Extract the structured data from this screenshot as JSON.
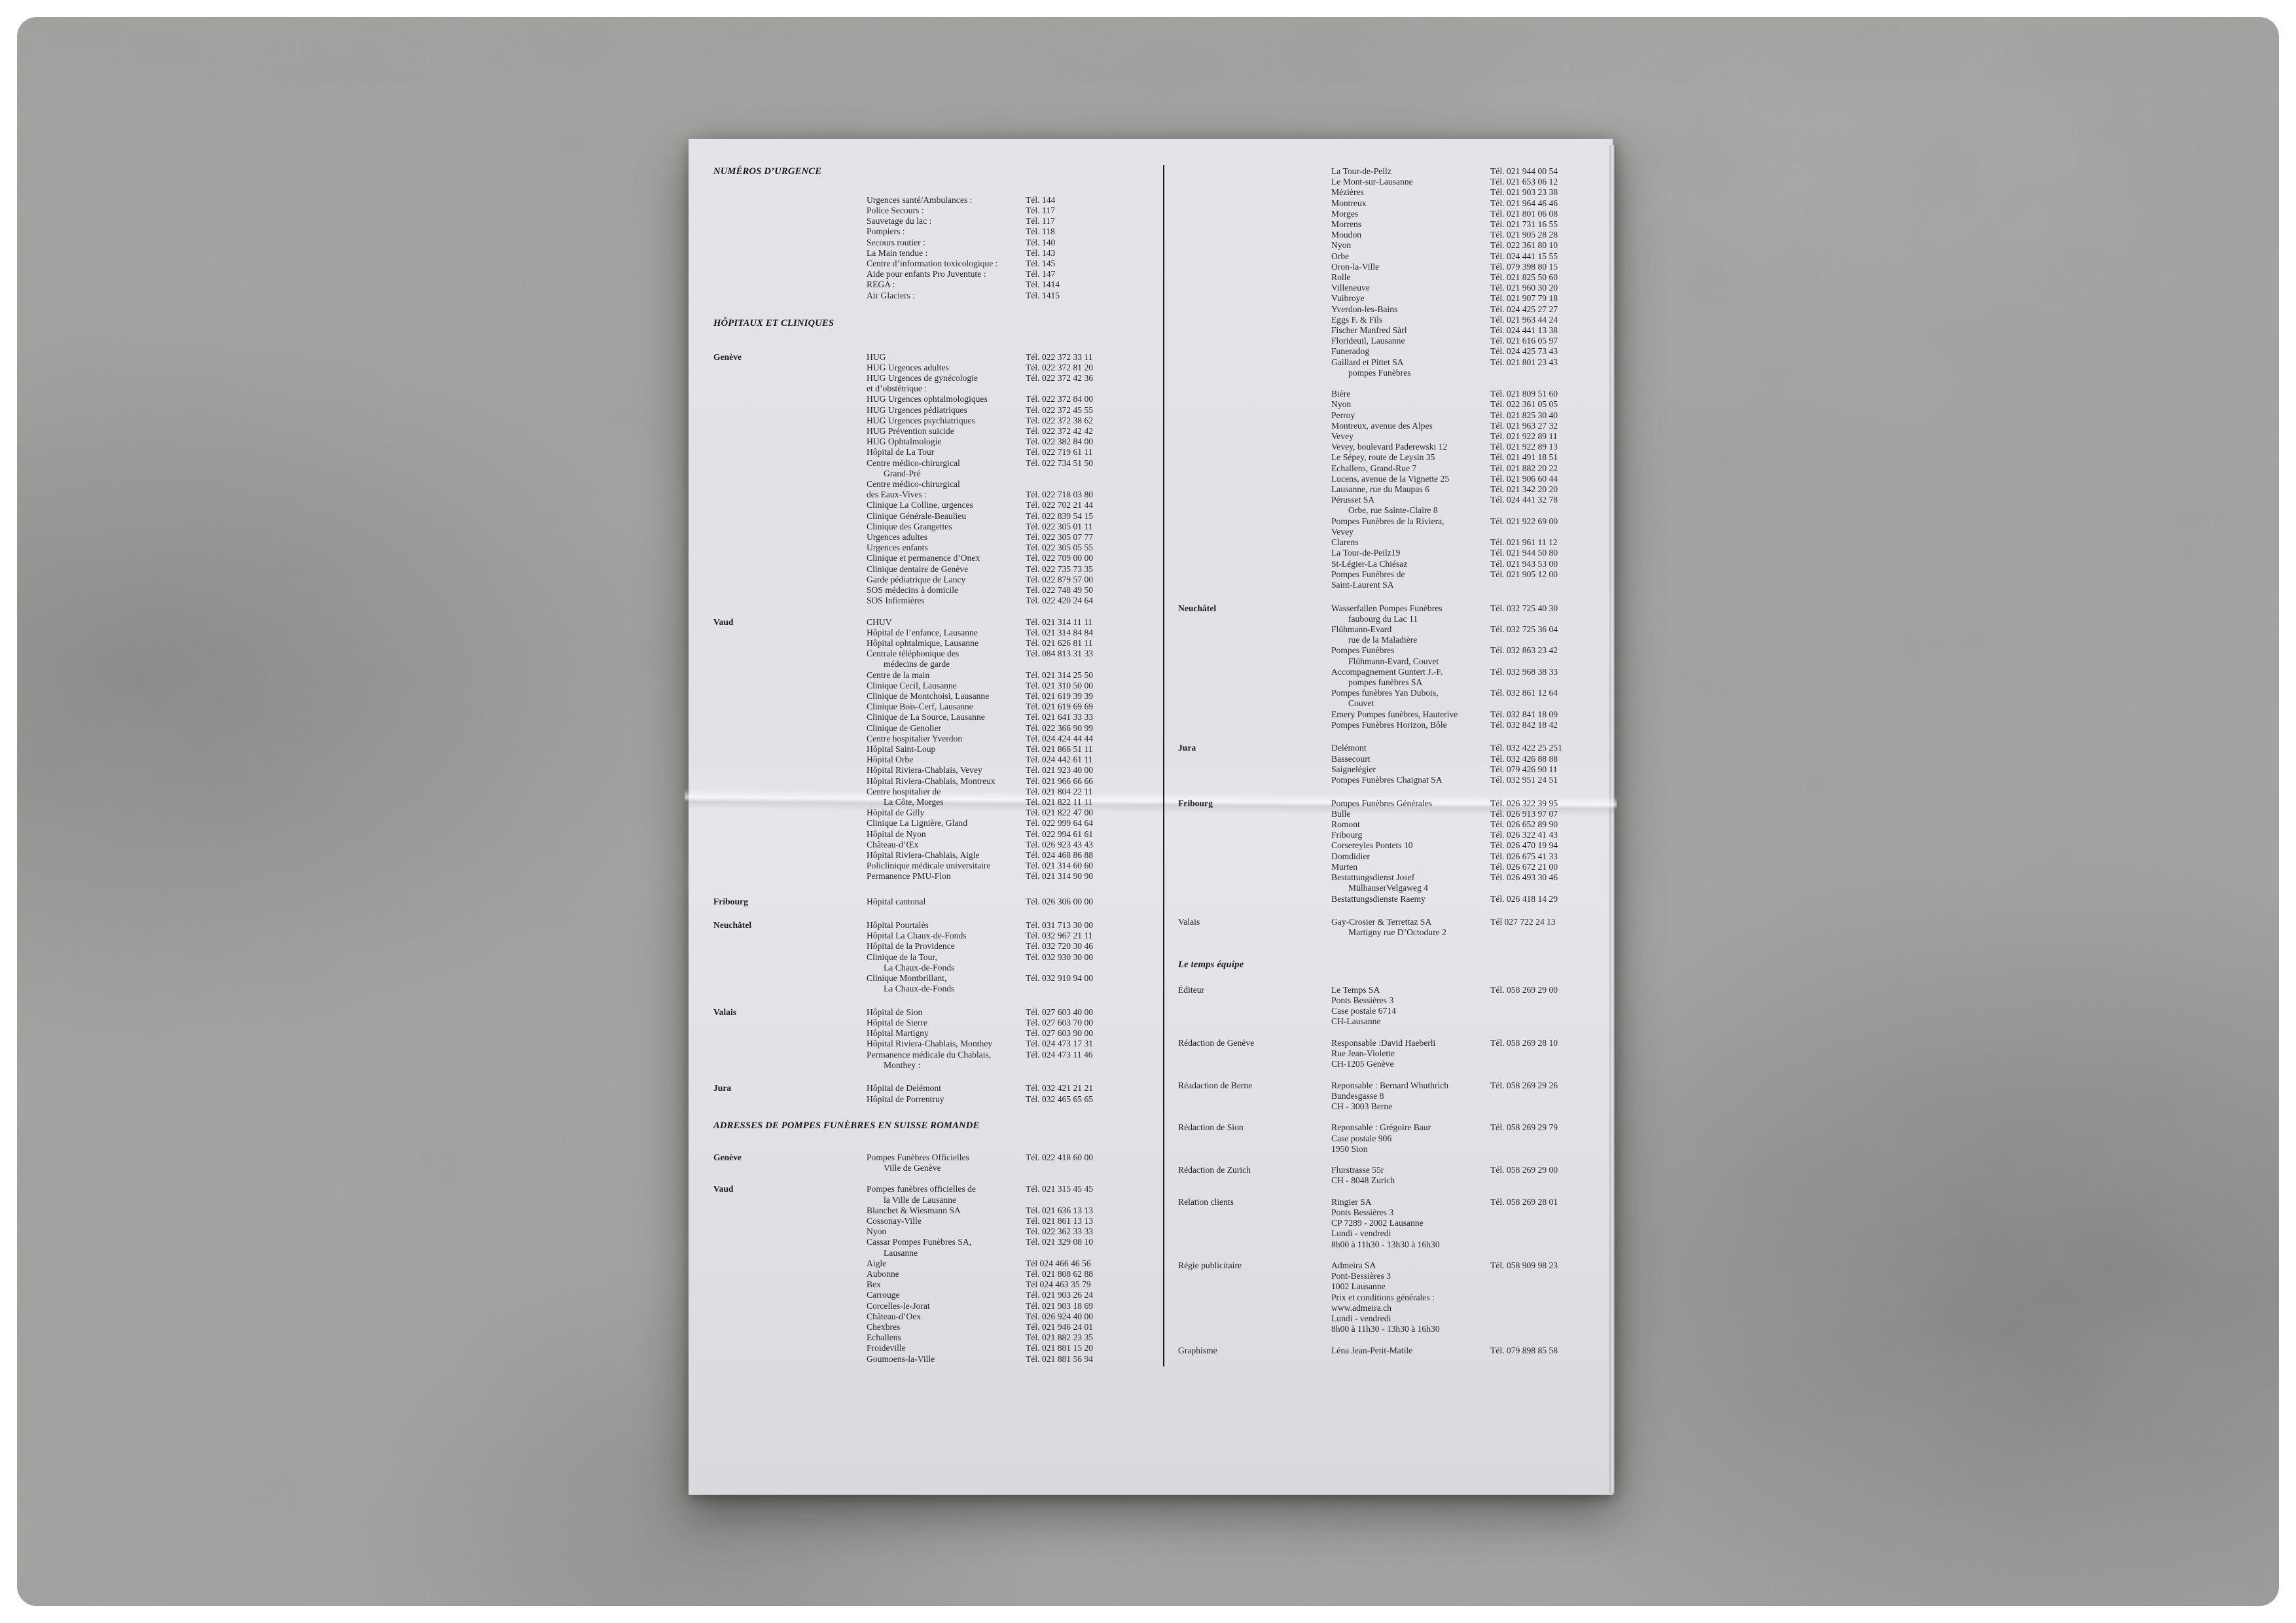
{
  "colors": {
    "background": "#a3a3a1",
    "paper": "#e2e2e6",
    "ink": "#26262c",
    "divider": "#1b1b1b"
  },
  "doc": {
    "left": [
      {
        "h": "NUMÉROS D’URGENCE"
      },
      {
        "g": 1.7
      },
      {
        "n": "Urgences santé/Ambulances :",
        "t": "Tél.  144"
      },
      {
        "n": "Police Secours :",
        "t": "Tél.   117"
      },
      {
        "n": "Sauvetage du lac :",
        "t": "Tél.   117"
      },
      {
        "n": "Pompiers :",
        "t": "Tél.   118"
      },
      {
        "n": "Secours routier :",
        "t": "Tél.  140"
      },
      {
        "n": "La Main tendue :",
        "t": "Tél.  143"
      },
      {
        "n": "Centre d’information toxicologique :",
        "t": "Tél.  145"
      },
      {
        "n": "Aide pour enfants Pro Juventute :",
        "t": "Tél.   147"
      },
      {
        "n": "REGA :",
        "t": "Tél. 1414"
      },
      {
        "n": "Air Glaciers :",
        "t": "Tél. 1415"
      },
      {
        "g": 1.6
      },
      {
        "h": "HÔPITAUX ET CLINIQUES"
      },
      {
        "g": 2.2
      },
      {
        "l": "Genève",
        "n": "HUG",
        "t": "Tél. 022 372  33  11"
      },
      {
        "n": "HUG Urgences adultes",
        "t": "Tél. 022 372   81 20"
      },
      {
        "n": "HUG Urgences de gynécologie",
        "t": "Tél. 022 372  42 36"
      },
      {
        "n": "et d’obstétrique :",
        "t": ""
      },
      {
        "n": "HUG Urgences ophtalmologiques",
        "t": "Tél. 022 372  84 00"
      },
      {
        "n": "HUG Urgences pédiatriques",
        "t": "Tél. 022 372  45 55"
      },
      {
        "n": "HUG Urgences psychiatriques",
        "t": "Tél. 022 372  38 62"
      },
      {
        "n": "HUG Prévention suicide",
        "t": "Tél. 022 372  42 42"
      },
      {
        "n": "HUG Ophtalmologie",
        "t": "Tél. 022 382  84 00"
      },
      {
        "n": "Hôpital de La Tour",
        "t": "Tél. 022 719   61  11"
      },
      {
        "n": "Centre médico-chirurgical",
        "t": "Tél. 022 734   51 50"
      },
      {
        "n": "Grand-Pré",
        "i": 1,
        "t": ""
      },
      {
        "n": "Centre médico-chirurgical",
        "t": ""
      },
      {
        "n": "des Eaux-Vives :",
        "t": "Tél. 022 718   03 80"
      },
      {
        "n": "Clinique La Colline, urgences",
        "t": "Tél. 022 702   21 44"
      },
      {
        "n": "Clinique Générale-Beaulieu",
        "t": "Tél. 022 839  54 15"
      },
      {
        "n": "Clinique des Grangettes",
        "t": "Tél. 022 305   01  11"
      },
      {
        "n": "Urgences adultes",
        "t": "Tél. 022 305  07 77"
      },
      {
        "n": "Urgences enfants",
        "t": "Tél. 022 305  05 55"
      },
      {
        "n": "Clinique et permanence d’Onex",
        "t": "Tél. 022 709  00 00"
      },
      {
        "n": "Clinique dentaire de Genève",
        "t": "Tél. 022 735   73 35"
      },
      {
        "n": "Garde pédiatrique de Lancy",
        "t": "Tél. 022 879   57 00"
      },
      {
        "n": "SOS médecins à domicile",
        "t": "Tél. 022 748   49 50"
      },
      {
        "n": "SOS Infirmières",
        "t": "Tél. 022 420  24 64"
      },
      {
        "g": 1
      },
      {
        "l": "Vaud",
        "n": "CHUV",
        "t": "Tél. 021 314     11  11"
      },
      {
        "n": "Hôpital de l’enfance, Lausanne",
        "t": "Tél. 021 314   84 84"
      },
      {
        "n": "Hôpital ophtalmique, Lausanne",
        "t": "Tél. 021 626   81  11"
      },
      {
        "n": "Centrale téléphonique des",
        "t": "Tél. 084 813   31 33"
      },
      {
        "n": "médecins de garde",
        "i": 1,
        "t": ""
      },
      {
        "n": "Centre de la main",
        "t": "Tél. 021 314   25 50"
      },
      {
        "n": "Clinique Cecil, Lausanne",
        "t": "Tél. 021 310   50 00"
      },
      {
        "n": "Clinique de Montchoisi, Lausanne",
        "t": "Tél. 021 619   39 39"
      },
      {
        "n": "Clinique Bois-Cerf, Lausanne",
        "t": "Tél. 021 619   69 69"
      },
      {
        "n": "Clinique de La Source, Lausanne",
        "t": "Tél. 021 641   33 33"
      },
      {
        "n": "Clinique de Genolier",
        "t": "Tél. 022 366 90 99"
      },
      {
        "n": "Centre hospitalier Yverdon",
        "t": "Tél. 024 424 44 44"
      },
      {
        "n": "Hôpital Saint-Loup",
        "t": "Tél. 021 866   51  11"
      },
      {
        "n": "Hôpital Orbe",
        "t": "Tél. 024 442   61  11"
      },
      {
        "n": "Hôpital Riviera-Chablais, Vevey",
        "t": "Tél. 021 923   40 00"
      },
      {
        "n": "Hôpital Riviera-Chablais, Montreux",
        "t": "Tél. 021 966  66 66"
      },
      {
        "n": "Centre hospitalier de",
        "t": "Tél. 021 804  22  11"
      },
      {
        "n": "La Côte, Morges",
        "i": 1,
        "t": "Tél. 021 822    11  11"
      },
      {
        "n": "Hôpital de Gilly",
        "t": "Tél. 021 822   47 00"
      },
      {
        "n": "Clinique La Lignière, Gland",
        "t": "Tél. 022 999 64 64"
      },
      {
        "n": "Hôpital de Nyon",
        "t": "Tél. 022 994   61 61"
      },
      {
        "n": "Château-d’Œx",
        "t": "Tél. 026 923 43 43"
      },
      {
        "n": "Hôpital Riviera-Chablais, Aigle",
        "t": "Tél. 024 468 86 88"
      },
      {
        "n": "Policlinique médicale universitaire",
        "t": "Tél. 021 314   60 60"
      },
      {
        "n": "Permanence PMU-Flon",
        "t": "Tél. 021 314   90 90"
      },
      {
        "g": 1.4
      },
      {
        "l": "Fribourg",
        "n": "Hôpital cantonal",
        "t": "Tél. 026 306 00 00"
      },
      {
        "g": 1.2
      },
      {
        "l": "Neuchâtel",
        "n": "Hôpital Pourtalès",
        "t": "Tél. 031 713   30 00"
      },
      {
        "n": "Hôpital La Chaux-de-Fonds",
        "t": "Tél. 032 967   21  11"
      },
      {
        "n": "Hôpital de la Providence",
        "t": "Tél. 032 720 30 46"
      },
      {
        "n": "Clinique de la Tour,",
        "t": "Tél. 032 930 30 00"
      },
      {
        "n": "La Chaux-de-Fonds",
        "i": 1,
        "t": ""
      },
      {
        "n": "Clinique Montbrillant,",
        "t": "Tél. 032 910  94 00"
      },
      {
        "n": "La Chaux-de-Fonds",
        "i": 1,
        "t": ""
      },
      {
        "g": 1.2
      },
      {
        "l": "Valais",
        "n": "Hôpital de Sion",
        "t": "Tél. 027 603 40 00"
      },
      {
        "n": "Hôpital de Sierre",
        "t": "Tél. 027 603 70 00"
      },
      {
        "n": "Hôpital Martigny",
        "t": "Tél. 027 603 90 00"
      },
      {
        "n": "Hôpital Riviera-Chablais, Monthey",
        "t": "Tél. 024 473   17 31"
      },
      {
        "n": "Permanence médicale du Chablais,",
        "t": "Tél. 024 473   11 46"
      },
      {
        "n": "Monthey :",
        "i": 1,
        "t": ""
      },
      {
        "g": 1.2
      },
      {
        "l": "Jura",
        "n": "Hôpital de Delémont",
        "t": "Tél. 032 421   21 21"
      },
      {
        "n": "Hôpital de Porrentruy",
        "t": "Tél. 032 465 65 65"
      },
      {
        "g": 1.5
      },
      {
        "h": "ADRESSES DE POMPES FUNÈBRES EN SUISSE ROMANDE"
      },
      {
        "g": 2
      },
      {
        "l": "Genève",
        "n": "Pompes Funèbres Officielles",
        "t": "Tél. 022 418  60 00"
      },
      {
        "n": "Ville de Genève",
        "i": 1,
        "t": ""
      },
      {
        "g": 1
      },
      {
        "l": "Vaud",
        "n": "Pompes funèbres officielles de",
        "t": "Tél. 021 315   45 45"
      },
      {
        "n": "la Ville de Lausanne",
        "i": 1,
        "t": ""
      },
      {
        "n": "Blanchet & Wiesmann SA",
        "t": "Tél. 021 636   13 13"
      },
      {
        "n": "Cossonay-Ville",
        "t": "Tél. 021 861   13 13"
      },
      {
        "n": "Nyon",
        "t": "Tél. 022 362 33 33"
      },
      {
        "n": "Cassar Pompes Funèbres SA,",
        "t": "Tél. 021 329  08 10"
      },
      {
        "n": "Lausanne",
        "i": 1,
        "t": ""
      },
      {
        "n": "Aigle",
        "t": "Tél 024 466   46 56"
      },
      {
        "n": "Aubonne",
        "t": "Tél. 021 808  62 88"
      },
      {
        "n": "Bex",
        "t": "Tél 024 463   35 79"
      },
      {
        "n": "Carrouge",
        "t": "Tél. 021 903  26 24"
      },
      {
        "n": "Corcelles-le-Jorat",
        "t": "Tél. 021 903   18 69"
      },
      {
        "n": "Château-d’Oex",
        "t": "Tél. 026 924 40 00"
      },
      {
        "n": "Chexbres",
        "t": "Tél. 021 946  24 01"
      },
      {
        "n": "Echallens",
        "t": "Tél. 021 882  23 35"
      },
      {
        "n": "Froideville",
        "t": "Tél. 021 881   15 20"
      },
      {
        "n": "Goumoens-la-Ville",
        "t": "Tél. 021 881   56 94"
      }
    ],
    "right": [
      {
        "n": "La Tour-de-Peilz",
        "t": "Tél. 021 944  00 54"
      },
      {
        "n": "Le Mont-sur-Lausanne",
        "t": "Tél. 021 653  06 12"
      },
      {
        "n": "Mézières",
        "t": "Tél. 021 903  23 38"
      },
      {
        "n": "Montreux",
        "t": "Tél. 021 964  46 46"
      },
      {
        "n": "Morges",
        "t": "Tél. 021 801  06 08"
      },
      {
        "n": "Morrens",
        "t": "Tél. 021 731    16 55"
      },
      {
        "n": "Moudon",
        "t": "Tél. 021 905  28 28"
      },
      {
        "n": "Nyon",
        "t": "Tél. 022 361  80 10"
      },
      {
        "n": "Orbe",
        "t": "Tél. 024 441   15 55"
      },
      {
        "n": "Oron-la-Ville",
        "t": "Tél. 079 398 80 15"
      },
      {
        "n": "Rolle",
        "t": "Tél. 021 825  50 60"
      },
      {
        "n": "Villeneuve",
        "t": "Tél. 021 960  30 20"
      },
      {
        "n": "Vuibroye",
        "t": "Tél. 021 907   79 18"
      },
      {
        "n": "Yverdon-les-Bains",
        "t": "Tél. 024 425  27 27"
      },
      {
        "n": "Eggs F. & Fils",
        "t": "Tél. 021 963  44 24"
      },
      {
        "n": "Fischer Manfred Sàrl",
        "t": "Tél. 024 441   13 38"
      },
      {
        "n": "Florideuil, Lausanne",
        "t": "Tél. 021 616   05 97"
      },
      {
        "n": "Funeradog",
        "t": "Tél. 024 425 73 43"
      },
      {
        "n": "Gaillard et Pittet SA",
        "t": "Tél. 021 801   23 43"
      },
      {
        "n": "pompes Funèbres",
        "i": 1,
        "t": ""
      },
      {
        "g": 1
      },
      {
        "n": "Bière",
        "t": "Tél. 021 809   51 60"
      },
      {
        "n": "Nyon",
        "t": "Tél. 022 361  05 05"
      },
      {
        "n": "Perroy",
        "t": "Tél. 021 825  30 40"
      },
      {
        "n": "Montreux, avenue des Alpes",
        "t": "Tél. 021 963  27 32"
      },
      {
        "n": "Vevey",
        "t": "Tél. 021 922  89  11"
      },
      {
        "n": "Vevey, boulevard Paderewski 12",
        "t": "Tél. 021 922  89 13"
      },
      {
        "n": "Le Sépey, route de Leysin 35",
        "t": "Tél. 021 491    18 51"
      },
      {
        "n": "Echallens, Grand-Rue 7",
        "t": "Tél. 021 882  20 22"
      },
      {
        "n": "Lucens, avenue de la Vignette 25",
        "t": "Tél. 021 906  60 44"
      },
      {
        "n": "Lausanne, rue du Maupas 6",
        "t": "Tél. 021 342  20 20"
      },
      {
        "n": "Pérusset SA",
        "t": "Tél. 024 441  32 78"
      },
      {
        "n": "Orbe, rue Sainte-Claire 8",
        "i": 1,
        "t": ""
      },
      {
        "n": "Pompes Funèbres de la Riviera,",
        "t": "Tél. 021 922  69 00"
      },
      {
        "n": "Vevey",
        "t": ""
      },
      {
        "n": "Clarens",
        "t": "Tél. 021 961      11 12"
      },
      {
        "n": "La Tour-de-Peilz19",
        "t": "Tél. 021 944  50 80"
      },
      {
        "n": "St-Légier-La Chiésaz",
        "t": "Tél. 021 943  53 00"
      },
      {
        "n": "Pompes Funèbres de",
        "t": "Tél. 021 905   12 00"
      },
      {
        "n": "Saint-Laurent SA",
        "t": ""
      },
      {
        "g": 1.2
      },
      {
        "l": "Neuchâtel",
        "n": "Wasserfallen Pompes Funèbres",
        "t": "Tél. 032 725 40 30"
      },
      {
        "n": "faubourg du Lac 11",
        "i": 1,
        "t": ""
      },
      {
        "n": "Flühmann-Evard",
        "t": "Tél. 032 725 36 04"
      },
      {
        "n": "rue de la Maladière",
        "i": 1,
        "t": ""
      },
      {
        "n": "Pompes Funèbres",
        "t": "Tél. 032 863 23 42"
      },
      {
        "n": "Flühmann-Evard, Couvet",
        "i": 1,
        "t": ""
      },
      {
        "n": "Accompagnement Guntert J.-F.",
        "t": "Tél. 032 968 38 33"
      },
      {
        "n": "pompes funèbres SA",
        "i": 1,
        "t": ""
      },
      {
        "n": "Pompes funèbres Yan Dubois,",
        "t": "Tél. 032 861   12 64"
      },
      {
        "n": "Couvet",
        "i": 1,
        "t": ""
      },
      {
        "n": "Emery Pompes funèbres, Hauterive",
        "t": "Tél. 032 841   18 09"
      },
      {
        "n": "Pompes Funèbres Horizon, Bôle",
        "t": "Tél. 032 842  18 42"
      },
      {
        "g": 1.2
      },
      {
        "l": "Jura",
        "n": "Delémont",
        "t": "Tél. 032 422 25 251"
      },
      {
        "n": "Bassecourt",
        "t": "Tél. 032 426 88 88"
      },
      {
        "n": "Saignelégier",
        "t": "Tél. 079 426 90  11"
      },
      {
        "n": "Pompes Funèbres Chaignat SA",
        "t": "Tél. 032 951   24 51"
      },
      {
        "g": 1.2
      },
      {
        "l": "Fribourg",
        "n": "Pompes Funèbres Générales",
        "t": "Tél. 026 322 39 95"
      },
      {
        "n": "Bulle",
        "t": "Tél. 026 913   97 07"
      },
      {
        "n": "Romont",
        "t": "Tél. 026 652 89 90"
      },
      {
        "n": "Fribourg",
        "t": "Tél. 026 322   41 43"
      },
      {
        "n": "Corsereyles Pontets 10",
        "t": "Tél. 026 470   19 94"
      },
      {
        "n": "Domdidier",
        "t": "Tél. 026 675   41 33"
      },
      {
        "n": "Murten",
        "t": "Tél. 026 672   21 00"
      },
      {
        "n": "Bestattungsdienst Josef",
        "t": "Tél. 026 493 30 46"
      },
      {
        "n": "MülhauserVelgaweg 4",
        "i": 1,
        "t": ""
      },
      {
        "n": "Bestattungsdienste Raemy",
        "t": "Tél. 026 418   14 29"
      },
      {
        "g": 1.2
      },
      {
        "l": "Valais",
        "lb": 0,
        "n": "Gay-Crosier & Terrettaz SA",
        "t": "Tél 027 722   24 13"
      },
      {
        "n": "Martigny rue D’Octodure 2",
        "i": 1,
        "t": ""
      },
      {
        "g": 2
      },
      {
        "h": "Le temps équipe"
      },
      {
        "g": 1.4
      },
      {
        "l": "Éditeur",
        "lb": 0,
        "n": "Le Temps SA",
        "t": "Tél. 058 269  29 00"
      },
      {
        "n": "Ponts Bessières 3",
        "t": ""
      },
      {
        "n": "Case postale 6714",
        "t": ""
      },
      {
        "n": "CH-Lausanne",
        "t": ""
      },
      {
        "g": 1
      },
      {
        "l": "Rédaction de Genève",
        "lb": 0,
        "n": "Responsable :David Haeberli",
        "t": "Tél. 058 269 28 10"
      },
      {
        "n": "Rue Jean-Violette",
        "t": ""
      },
      {
        "n": "CH-1205 Genève",
        "t": ""
      },
      {
        "g": 1
      },
      {
        "l": "Réadaction de Berne",
        "lb": 0,
        "n": "Reponsable : Bernard Whuthrich",
        "t": "Tél. 058 269 29 26"
      },
      {
        "n": "Bundesgasse 8",
        "t": ""
      },
      {
        "n": "CH - 3003 Berne",
        "t": ""
      },
      {
        "g": 1
      },
      {
        "l": "Rédaction de Sion",
        "lb": 0,
        "n": "Reponsable : Grégoire Baur",
        "t": "Tél. 058 269 29 79"
      },
      {
        "n": "Case postale 906",
        "t": ""
      },
      {
        "n": "1950 Sion",
        "t": ""
      },
      {
        "g": 1
      },
      {
        "l": "Rédaction de Zurich",
        "lb": 0,
        "n": "Flurstrasse 55r",
        "t": "Tél. 058 269 29 00"
      },
      {
        "n": "CH - 8048 Zurich",
        "t": ""
      },
      {
        "g": 1
      },
      {
        "l": "Relation clients",
        "lb": 0,
        "n": "Ringier SA",
        "t": "Tél. 058 269 28 01"
      },
      {
        "n": "Ponts Bessières 3",
        "t": ""
      },
      {
        "n": "CP 7289 - 2002 Lausanne",
        "t": ""
      },
      {
        "n": "Lundi - vendredi",
        "t": ""
      },
      {
        "n": "8h00 à 11h30 - 13h30 à 16h30",
        "t": ""
      },
      {
        "g": 1
      },
      {
        "l": "Régie publicitaire",
        "lb": 0,
        "n": "Admeira SA",
        "t": "Tél. 058 909 98 23"
      },
      {
        "n": "Pont-Bessières 3",
        "t": ""
      },
      {
        "n": "1002 Lausanne",
        "t": ""
      },
      {
        "n": "Prix et conditions générales :",
        "t": ""
      },
      {
        "n": "www.admeira.ch",
        "t": ""
      },
      {
        "n": "Lundi - vendredi",
        "t": ""
      },
      {
        "n": "8h00 à 11h30 - 13h30 à 16h30",
        "t": ""
      },
      {
        "g": 1
      },
      {
        "l": "Graphisme",
        "lb": 0,
        "n": "Léna Jean-Petit-Matile",
        "t": "Tél. 079 898  85 58"
      }
    ]
  }
}
